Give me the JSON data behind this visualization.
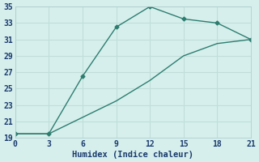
{
  "line1_x": [
    0,
    3,
    6,
    9,
    12,
    15,
    18,
    21
  ],
  "line1_y": [
    19.5,
    19.5,
    26.5,
    32.5,
    35,
    33.5,
    33,
    31
  ],
  "line2_x": [
    0,
    3,
    6,
    9,
    12,
    15,
    18,
    21
  ],
  "line2_y": [
    19.5,
    19.5,
    21.5,
    23.5,
    26,
    29,
    30.5,
    31
  ],
  "marker_x": [
    3,
    6,
    9,
    12,
    15,
    18,
    21
  ],
  "marker_y1": [
    19.5,
    26.5,
    32.5,
    35,
    33.5,
    33,
    31
  ],
  "color": "#2d7d6f",
  "bg_color": "#d6efec",
  "grid_color": "#c0deda",
  "xlabel": "Humidex (Indice chaleur)",
  "xlim": [
    0,
    21
  ],
  "ylim": [
    19,
    35
  ],
  "xticks": [
    0,
    3,
    6,
    9,
    12,
    15,
    18,
    21
  ],
  "yticks": [
    19,
    21,
    23,
    25,
    27,
    29,
    31,
    33,
    35
  ],
  "xlabel_fontsize": 7.5,
  "tick_fontsize": 7
}
